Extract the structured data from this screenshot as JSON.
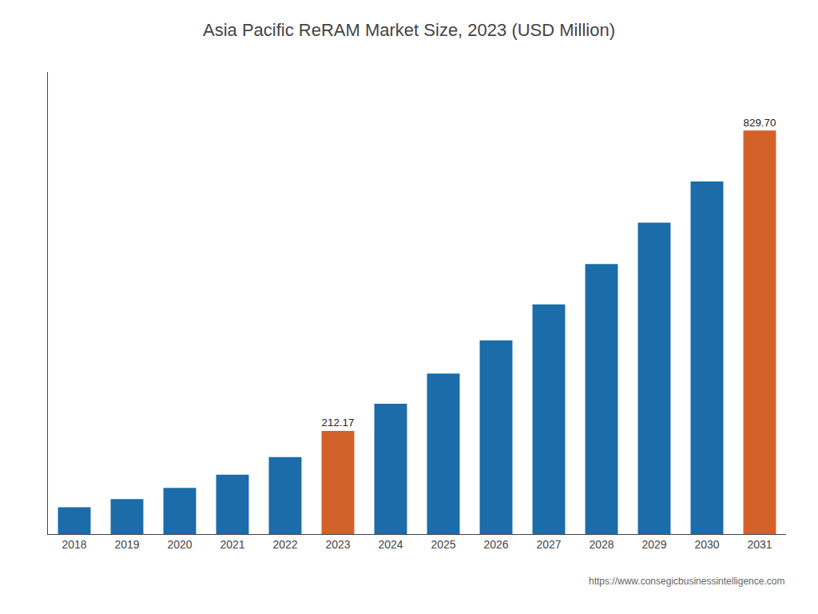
{
  "chart_data": {
    "type": "bar",
    "title": "Asia Pacific ReRAM Market Size, 2023 (USD Million)",
    "categories": [
      "2018",
      "2019",
      "2020",
      "2021",
      "2022",
      "2023",
      "2024",
      "2025",
      "2026",
      "2027",
      "2028",
      "2029",
      "2030",
      "2031"
    ],
    "values": [
      55,
      72,
      95,
      122,
      158,
      212.17,
      268,
      330,
      398,
      472,
      555,
      640,
      725,
      829.7
    ],
    "value_labels": [
      null,
      null,
      null,
      null,
      null,
      "212.17",
      null,
      null,
      null,
      null,
      null,
      null,
      null,
      "829.70"
    ],
    "data_labels": true,
    "colors": [
      "#1b6ca8",
      "#1b6ca8",
      "#1b6ca8",
      "#1b6ca8",
      "#1b6ca8",
      "#d2622a",
      "#1b6ca8",
      "#1b6ca8",
      "#1b6ca8",
      "#1b6ca8",
      "#1b6ca8",
      "#1b6ca8",
      "#1b6ca8",
      "#d2622a"
    ],
    "ylim": [
      0,
      950
    ],
    "tick_labels": "x",
    "grid": false,
    "annotations": [
      "https://www.consegicbusinessintelligence.com"
    ]
  }
}
